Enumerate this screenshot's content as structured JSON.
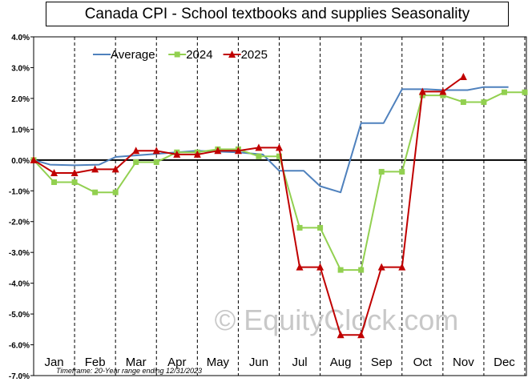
{
  "chart_data": {
    "type": "line",
    "title": "Canada  CPI - School textbooks  and supplies Seasonality",
    "xlabel": "",
    "ylabel": "",
    "categories": [
      "Jan",
      "Feb",
      "Mar",
      "Apr",
      "May",
      "Jun",
      "Jul",
      "Aug",
      "Sep",
      "Oct",
      "Nov",
      "Dec"
    ],
    "ylim": [
      -7.0,
      4.0
    ],
    "yticks": [
      "4.0%",
      "3.0%",
      "2.0%",
      "1.0%",
      "0.0%",
      "-1.0%",
      "-2.0%",
      "-3.0%",
      "-4.0%",
      "-5.0%",
      "-6.0%",
      "-7.0%"
    ],
    "grid": "vertical dashed",
    "legend_position": "top-left",
    "series": [
      {
        "name": "Average",
        "color": "#4f81bd",
        "marker": "none",
        "points": [
          [
            0.0,
            0.0
          ],
          [
            0.4,
            -0.15
          ],
          [
            1.0,
            -0.17
          ],
          [
            1.6,
            -0.15
          ],
          [
            2.0,
            0.1
          ],
          [
            3.0,
            0.2
          ],
          [
            4.0,
            0.3
          ],
          [
            5.0,
            0.25
          ],
          [
            5.6,
            0.18
          ],
          [
            6.0,
            -0.35
          ],
          [
            6.6,
            -0.35
          ],
          [
            7.0,
            -0.85
          ],
          [
            7.5,
            -1.05
          ],
          [
            8.0,
            1.2
          ],
          [
            8.55,
            1.2
          ],
          [
            9.0,
            2.3
          ],
          [
            9.6,
            2.3
          ],
          [
            10.0,
            2.27
          ],
          [
            10.6,
            2.27
          ],
          [
            11.0,
            2.37
          ],
          [
            11.6,
            2.37
          ]
        ]
      },
      {
        "name": "2024",
        "color": "#92d050",
        "marker": "square",
        "points": [
          [
            0.0,
            0.0
          ],
          [
            0.5,
            -0.72
          ],
          [
            1.0,
            -0.72
          ],
          [
            1.5,
            -1.05
          ],
          [
            2.0,
            -1.05
          ],
          [
            2.5,
            -0.07
          ],
          [
            3.0,
            -0.07
          ],
          [
            3.5,
            0.25
          ],
          [
            4.0,
            0.25
          ],
          [
            4.5,
            0.35
          ],
          [
            5.0,
            0.35
          ],
          [
            5.5,
            0.12
          ],
          [
            6.0,
            0.12
          ],
          [
            6.5,
            -2.2
          ],
          [
            7.0,
            -2.2
          ],
          [
            7.5,
            -3.57
          ],
          [
            8.0,
            -3.57
          ],
          [
            8.5,
            -0.38
          ],
          [
            9.0,
            -0.38
          ],
          [
            9.5,
            2.1
          ],
          [
            10.0,
            2.1
          ],
          [
            10.5,
            1.88
          ],
          [
            11.0,
            1.88
          ],
          [
            11.5,
            2.2
          ],
          [
            12.0,
            2.2
          ]
        ]
      },
      {
        "name": "2025",
        "color": "#c00000",
        "marker": "triangle",
        "points": [
          [
            0.0,
            0.0
          ],
          [
            0.5,
            -0.42
          ],
          [
            1.0,
            -0.42
          ],
          [
            1.5,
            -0.3
          ],
          [
            2.0,
            -0.3
          ],
          [
            2.5,
            0.3
          ],
          [
            3.0,
            0.3
          ],
          [
            3.5,
            0.18
          ],
          [
            4.0,
            0.18
          ],
          [
            4.5,
            0.3
          ],
          [
            5.0,
            0.3
          ],
          [
            5.5,
            0.4
          ],
          [
            6.0,
            0.4
          ],
          [
            6.5,
            -3.48
          ],
          [
            7.0,
            -3.48
          ],
          [
            7.5,
            -5.68
          ],
          [
            8.0,
            -5.68
          ],
          [
            8.5,
            -3.48
          ],
          [
            9.0,
            -3.48
          ],
          [
            9.5,
            2.22
          ],
          [
            10.0,
            2.22
          ],
          [
            10.5,
            2.7
          ]
        ]
      }
    ],
    "watermark": "© EquityClock.com",
    "footnote": "Timeframe: 20-Year range ending 12/31/2023"
  }
}
